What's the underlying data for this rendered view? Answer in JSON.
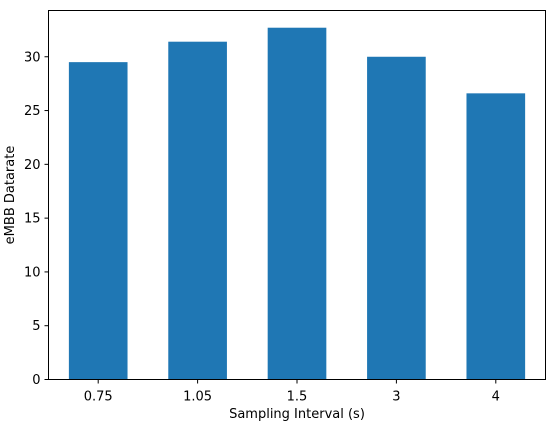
{
  "chart_data": {
    "type": "bar",
    "categories": [
      "0.75",
      "1.05",
      "1.5",
      "3",
      "4"
    ],
    "values": [
      29.5,
      31.4,
      32.7,
      30.0,
      26.6
    ],
    "title": "",
    "xlabel": "Sampling Interval (s)",
    "ylabel": "eMBB Datarate",
    "ylim": [
      0,
      34.3
    ],
    "yticks": [
      "0",
      "5",
      "10",
      "15",
      "20",
      "25",
      "30"
    ],
    "grid": false,
    "colors": {
      "bar": "#1f77b4",
      "axis": "#000000",
      "background": "#ffffff"
    }
  }
}
